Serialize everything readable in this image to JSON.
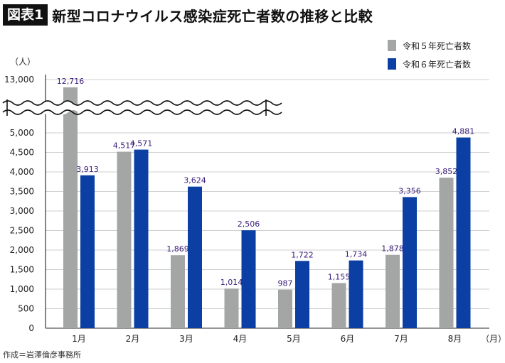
{
  "header": {
    "badge": "図表1",
    "title": "新型コロナウイルス感染症死亡者数の推移と比較"
  },
  "source": "作成＝岩澤倫彦事務所",
  "colors": {
    "series_r5": "#a3a6a5",
    "series_r6": "#0b3fa3",
    "label": "#3b1e7a",
    "grid": "#cfcfcf"
  },
  "chart_data": {
    "type": "bar",
    "title": "新型コロナウイルス感染症死亡者数の推移と比較",
    "ylabel": "（人）",
    "xunit": "（月）",
    "categories": [
      "1月",
      "2月",
      "3月",
      "4月",
      "5月",
      "6月",
      "7月",
      "8月"
    ],
    "series": [
      {
        "name": "令和５年死亡者数",
        "values": [
          12716,
          4517,
          1869,
          1014,
          987,
          1155,
          1878,
          3852
        ],
        "labels": [
          "12,716",
          "4,517",
          "1,869",
          "1,014",
          "987",
          "1,155",
          "1,878",
          "3,852"
        ]
      },
      {
        "name": "令和６年死亡者数",
        "values": [
          3913,
          4571,
          3624,
          2506,
          1722,
          1734,
          3356,
          4881
        ],
        "labels": [
          "3,913",
          "4,571",
          "3,624",
          "2,506",
          "1,722",
          "1,734",
          "3,356",
          "4,881"
        ]
      }
    ],
    "yticks": [
      "0",
      "500",
      "1,000",
      "1,500",
      "2,000",
      "2,500",
      "3,000",
      "3,500",
      "4,000",
      "4,500",
      "5,000"
    ],
    "ybreak_tick": "13,000",
    "ylim": [
      0,
      5000
    ],
    "axis_break": true,
    "grid": true,
    "legend": "top-right"
  }
}
